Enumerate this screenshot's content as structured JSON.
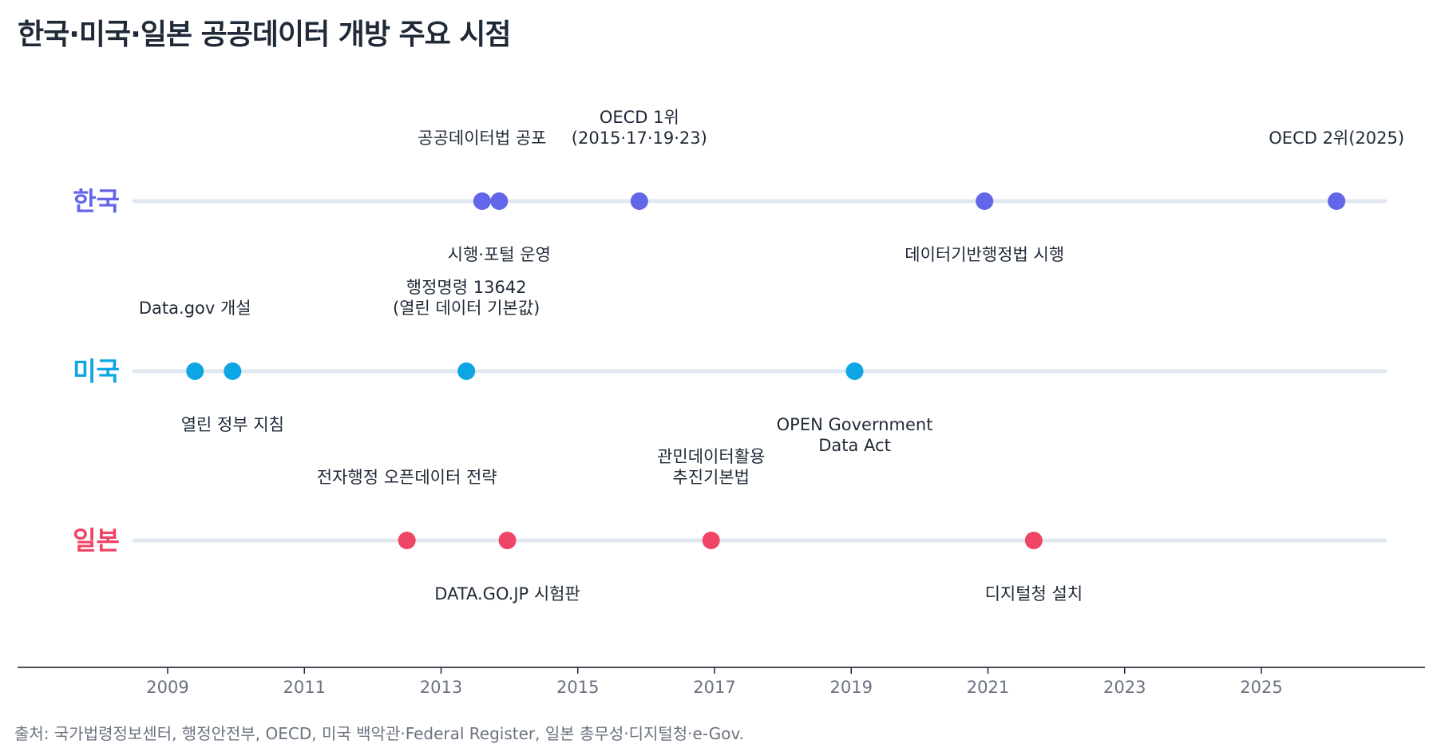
{
  "title": "한국·미국·일본 공공데이터 개방 주요 시점",
  "source": "출처: 국가법령정보센터, 행정안전부, OECD, 미국 백악관·Federal Register, 일본 총무성·디지털청·e-Gov.",
  "chart_data": {
    "type": "scatter",
    "subtype": "timeline",
    "title": "한국·미국·일본 공공데이터 개방 주요 시점",
    "xlim": [
      2007.3,
      2027.4
    ],
    "x_ticks": [
      2009,
      2011,
      2013,
      2015,
      2017,
      2019,
      2021,
      2023,
      2025
    ],
    "grid": false,
    "series": [
      {
        "name": "한국",
        "color": "#6366e8",
        "events": [
          {
            "x": 2013.6,
            "label": [
              "공공데이터법 공포"
            ],
            "side": "above"
          },
          {
            "x": 2013.85,
            "label": [
              "시행·포털 운영"
            ],
            "side": "below"
          },
          {
            "x": 2015.9,
            "label": [
              "OECD 1위",
              "(2015·17·19·23)"
            ],
            "side": "above"
          },
          {
            "x": 2020.95,
            "label": [
              "데이터기반행정법 시행"
            ],
            "side": "below"
          },
          {
            "x": 2026.1,
            "label": [
              "OECD 2위(2025)"
            ],
            "side": "above"
          }
        ]
      },
      {
        "name": "미국",
        "color": "#0ea5e4",
        "events": [
          {
            "x": 2009.4,
            "label": [
              "Data.gov 개설"
            ],
            "side": "above"
          },
          {
            "x": 2009.95,
            "label": [
              "열린 정부 지침"
            ],
            "side": "below"
          },
          {
            "x": 2013.37,
            "label": [
              "행정명령 13642",
              "(열린 데이터 기본값)"
            ],
            "side": "above"
          },
          {
            "x": 2019.05,
            "label": [
              "OPEN Government",
              "Data Act"
            ],
            "side": "below"
          }
        ]
      },
      {
        "name": "일본",
        "color": "#ef4466",
        "events": [
          {
            "x": 2012.5,
            "label": [
              "전자행정 오픈데이터 전략"
            ],
            "side": "above"
          },
          {
            "x": 2013.97,
            "label": [
              "DATA.GO.JP 시험판"
            ],
            "side": "below"
          },
          {
            "x": 2016.95,
            "label": [
              "관민데이터활용",
              "추진기본법"
            ],
            "side": "above"
          },
          {
            "x": 2021.67,
            "label": [
              "디지털청 설치"
            ],
            "side": "below"
          }
        ]
      }
    ]
  }
}
